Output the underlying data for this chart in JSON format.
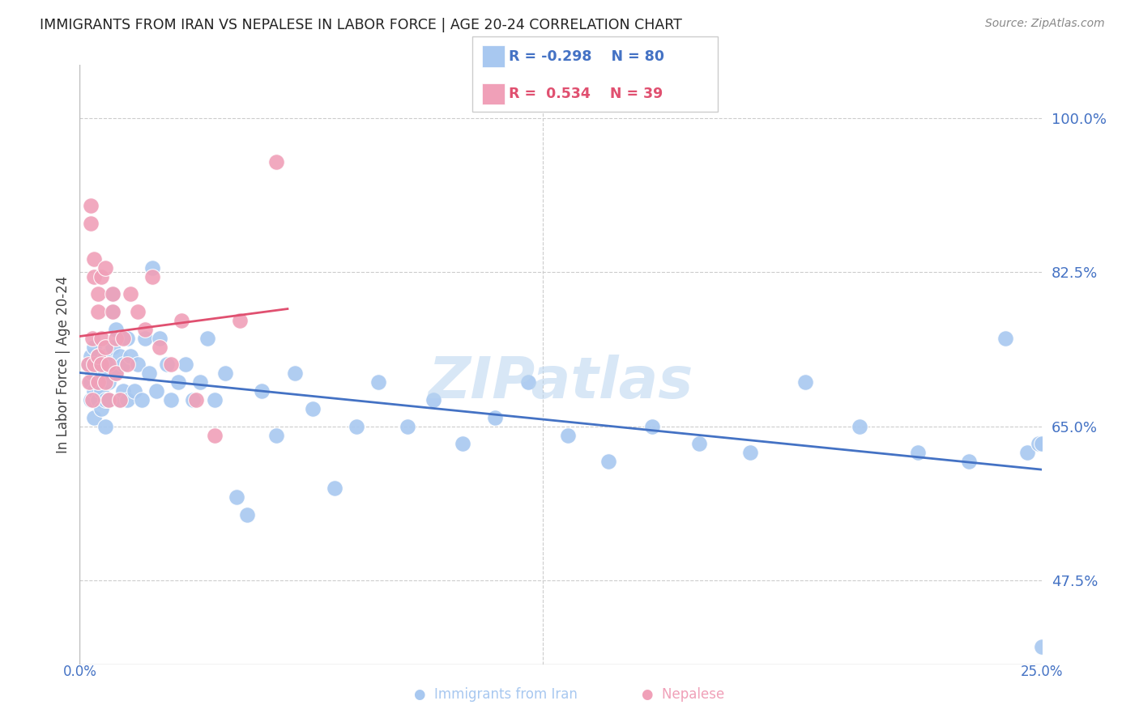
{
  "title": "IMMIGRANTS FROM IRAN VS NEPALESE IN LABOR FORCE | AGE 20-24 CORRELATION CHART",
  "source_text": "Source: ZipAtlas.com",
  "ylabel": "In Labor Force | Age 20-24",
  "ytick_labels": [
    "100.0%",
    "82.5%",
    "65.0%",
    "47.5%"
  ],
  "ytick_values": [
    1.0,
    0.825,
    0.65,
    0.475
  ],
  "ylim": [
    0.38,
    1.06
  ],
  "xlim": [
    -0.002,
    0.262
  ],
  "iran_color": "#A8C8F0",
  "nepal_color": "#F0A0B8",
  "iran_line_color": "#4472C4",
  "nepal_line_color": "#E05070",
  "legend_iran_r": "-0.298",
  "legend_iran_n": "80",
  "legend_nepal_r": "0.534",
  "legend_nepal_n": "39",
  "watermark": "ZIPatlas",
  "iran_scatter_x": [
    0.0005,
    0.001,
    0.001,
    0.001,
    0.0015,
    0.002,
    0.002,
    0.002,
    0.0025,
    0.003,
    0.003,
    0.003,
    0.003,
    0.004,
    0.004,
    0.004,
    0.005,
    0.005,
    0.005,
    0.005,
    0.006,
    0.006,
    0.006,
    0.007,
    0.007,
    0.007,
    0.008,
    0.008,
    0.009,
    0.009,
    0.01,
    0.01,
    0.011,
    0.011,
    0.012,
    0.013,
    0.014,
    0.015,
    0.016,
    0.017,
    0.018,
    0.019,
    0.02,
    0.022,
    0.023,
    0.025,
    0.027,
    0.029,
    0.031,
    0.033,
    0.035,
    0.038,
    0.041,
    0.044,
    0.048,
    0.052,
    0.057,
    0.062,
    0.068,
    0.074,
    0.08,
    0.088,
    0.095,
    0.103,
    0.112,
    0.121,
    0.132,
    0.143,
    0.155,
    0.168,
    0.182,
    0.197,
    0.212,
    0.228,
    0.242,
    0.252,
    0.258,
    0.261,
    0.262,
    0.262
  ],
  "iran_scatter_y": [
    0.72,
    0.7,
    0.73,
    0.68,
    0.71,
    0.69,
    0.74,
    0.66,
    0.72,
    0.7,
    0.68,
    0.71,
    0.73,
    0.69,
    0.72,
    0.67,
    0.68,
    0.71,
    0.73,
    0.65,
    0.7,
    0.68,
    0.72,
    0.78,
    0.8,
    0.74,
    0.76,
    0.71,
    0.73,
    0.68,
    0.69,
    0.72,
    0.68,
    0.75,
    0.73,
    0.69,
    0.72,
    0.68,
    0.75,
    0.71,
    0.83,
    0.69,
    0.75,
    0.72,
    0.68,
    0.7,
    0.72,
    0.68,
    0.7,
    0.75,
    0.68,
    0.71,
    0.57,
    0.55,
    0.69,
    0.64,
    0.71,
    0.67,
    0.58,
    0.65,
    0.7,
    0.65,
    0.68,
    0.63,
    0.66,
    0.7,
    0.64,
    0.61,
    0.65,
    0.63,
    0.62,
    0.7,
    0.65,
    0.62,
    0.61,
    0.75,
    0.62,
    0.63,
    0.63,
    0.4
  ],
  "nepal_scatter_x": [
    0.0003,
    0.0005,
    0.001,
    0.001,
    0.0015,
    0.0015,
    0.002,
    0.002,
    0.002,
    0.003,
    0.003,
    0.003,
    0.003,
    0.004,
    0.004,
    0.004,
    0.005,
    0.005,
    0.005,
    0.006,
    0.006,
    0.007,
    0.007,
    0.008,
    0.008,
    0.009,
    0.01,
    0.011,
    0.012,
    0.014,
    0.016,
    0.018,
    0.02,
    0.023,
    0.026,
    0.03,
    0.035,
    0.042,
    0.052
  ],
  "nepal_scatter_y": [
    0.72,
    0.7,
    0.9,
    0.88,
    0.75,
    0.68,
    0.72,
    0.82,
    0.84,
    0.7,
    0.73,
    0.78,
    0.8,
    0.72,
    0.75,
    0.82,
    0.7,
    0.74,
    0.83,
    0.68,
    0.72,
    0.78,
    0.8,
    0.71,
    0.75,
    0.68,
    0.75,
    0.72,
    0.8,
    0.78,
    0.76,
    0.82,
    0.74,
    0.72,
    0.77,
    0.68,
    0.64,
    0.77,
    0.95
  ]
}
